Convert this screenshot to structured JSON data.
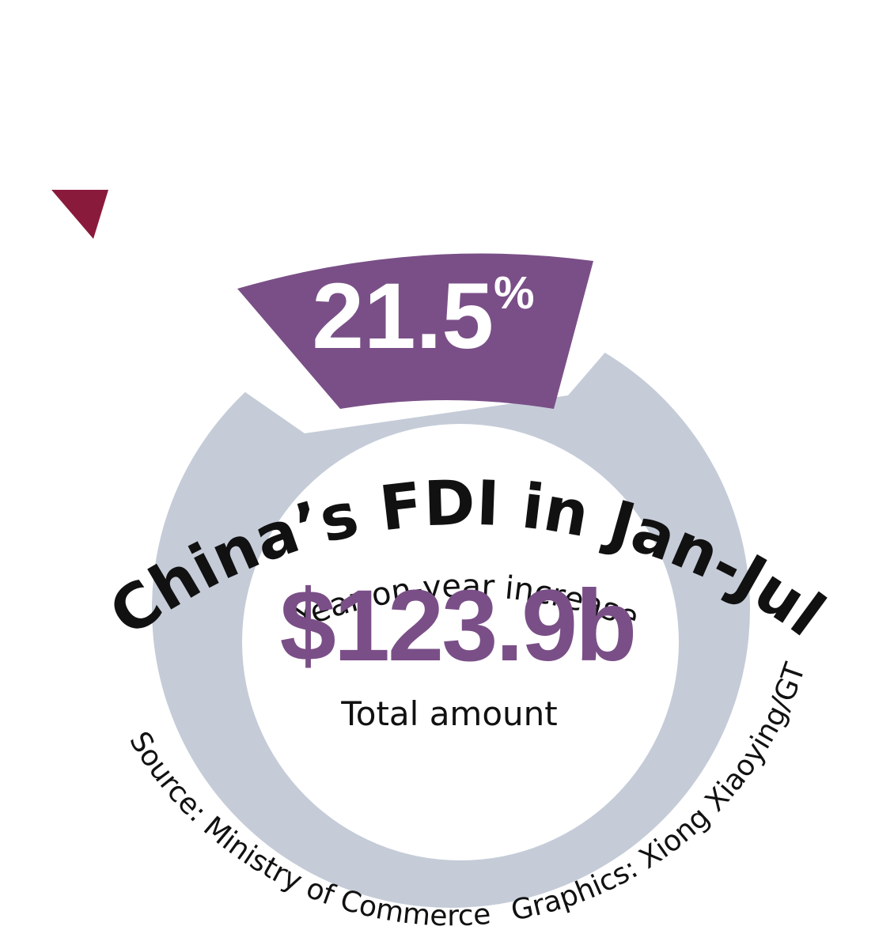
{
  "title": "China’s FDI in Jan-Jul",
  "subtitle": "Year-on-year increase",
  "increase": {
    "value": "21.5",
    "unit": "%"
  },
  "total": {
    "value": "$123.9b",
    "label": "Total amount"
  },
  "source": "Source: Ministry of Commerce",
  "credit": "Graphics: Xiong Xiaoying/GT"
}
